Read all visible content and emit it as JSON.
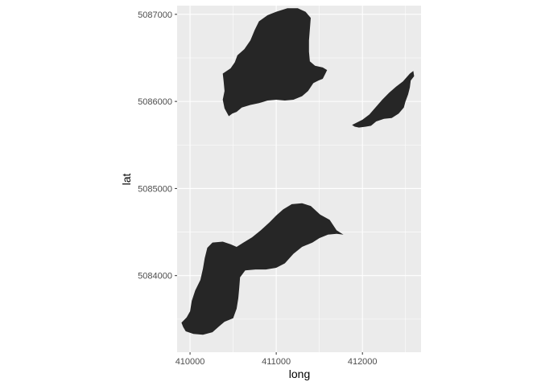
{
  "chart_data": {
    "type": "map-polygons",
    "xlabel": "long",
    "ylabel": "lat",
    "xlim": [
      409850,
      412680
    ],
    "ylim": [
      5083120,
      5087100
    ],
    "x_ticks": [
      {
        "value": 410000,
        "label": "410000"
      },
      {
        "value": 411000,
        "label": "411000"
      },
      {
        "value": 412000,
        "label": "412000"
      }
    ],
    "y_ticks": [
      {
        "value": 5084000,
        "label": "5084000"
      },
      {
        "value": 5085000,
        "label": "5085000"
      },
      {
        "value": 5086000,
        "label": "5086000"
      },
      {
        "value": 5087000,
        "label": "5087000"
      }
    ],
    "grid": true,
    "colors": {
      "panel": "#ebebeb",
      "grid_major": "#ffffff",
      "polygon_fill": "#262626"
    },
    "polygons": [
      {
        "name": "north-lake",
        "points": [
          [
            410450,
            5085830
          ],
          [
            410400,
            5085920
          ],
          [
            410380,
            5086020
          ],
          [
            410400,
            5086120
          ],
          [
            410390,
            5086230
          ],
          [
            410380,
            5086320
          ],
          [
            410470,
            5086380
          ],
          [
            410520,
            5086450
          ],
          [
            410550,
            5086530
          ],
          [
            410630,
            5086600
          ],
          [
            410700,
            5086700
          ],
          [
            410750,
            5086820
          ],
          [
            410800,
            5086920
          ],
          [
            410900,
            5086990
          ],
          [
            411000,
            5087030
          ],
          [
            411130,
            5087070
          ],
          [
            411250,
            5087070
          ],
          [
            411340,
            5087030
          ],
          [
            411400,
            5086960
          ],
          [
            411390,
            5086830
          ],
          [
            411380,
            5086700
          ],
          [
            411380,
            5086570
          ],
          [
            411390,
            5086460
          ],
          [
            411450,
            5086410
          ],
          [
            411540,
            5086390
          ],
          [
            411590,
            5086360
          ],
          [
            411570,
            5086320
          ],
          [
            411540,
            5086260
          ],
          [
            411490,
            5086240
          ],
          [
            411430,
            5086210
          ],
          [
            411370,
            5086120
          ],
          [
            411300,
            5086060
          ],
          [
            411200,
            5086020
          ],
          [
            411100,
            5086010
          ],
          [
            411000,
            5086020
          ],
          [
            410900,
            5086010
          ],
          [
            410800,
            5085980
          ],
          [
            410700,
            5085960
          ],
          [
            410600,
            5085930
          ],
          [
            410540,
            5085880
          ],
          [
            410490,
            5085860
          ]
        ]
      },
      {
        "name": "east-lake",
        "points": [
          [
            411880,
            5085730
          ],
          [
            412000,
            5085790
          ],
          [
            412080,
            5085850
          ],
          [
            412150,
            5085930
          ],
          [
            412230,
            5086020
          ],
          [
            412310,
            5086100
          ],
          [
            412390,
            5086170
          ],
          [
            412470,
            5086230
          ],
          [
            412550,
            5086320
          ],
          [
            412590,
            5086350
          ],
          [
            412600,
            5086290
          ],
          [
            412560,
            5086240
          ],
          [
            412550,
            5086160
          ],
          [
            412530,
            5086080
          ],
          [
            412500,
            5086000
          ],
          [
            412480,
            5085930
          ],
          [
            412420,
            5085860
          ],
          [
            412340,
            5085810
          ],
          [
            412250,
            5085800
          ],
          [
            412160,
            5085770
          ],
          [
            412100,
            5085720
          ],
          [
            412040,
            5085710
          ],
          [
            411960,
            5085700
          ],
          [
            411910,
            5085710
          ]
        ]
      },
      {
        "name": "south-lake",
        "points": [
          [
            409920,
            5083410
          ],
          [
            409900,
            5083460
          ],
          [
            409960,
            5083520
          ],
          [
            410000,
            5083590
          ],
          [
            410020,
            5083710
          ],
          [
            410060,
            5083830
          ],
          [
            410120,
            5083950
          ],
          [
            410150,
            5084080
          ],
          [
            410170,
            5084200
          ],
          [
            410200,
            5084320
          ],
          [
            410260,
            5084380
          ],
          [
            410380,
            5084390
          ],
          [
            410470,
            5084360
          ],
          [
            410540,
            5084330
          ],
          [
            410620,
            5084380
          ],
          [
            410720,
            5084440
          ],
          [
            410820,
            5084520
          ],
          [
            410920,
            5084610
          ],
          [
            411000,
            5084690
          ],
          [
            411080,
            5084760
          ],
          [
            411180,
            5084820
          ],
          [
            411300,
            5084830
          ],
          [
            411400,
            5084800
          ],
          [
            411510,
            5084700
          ],
          [
            411620,
            5084640
          ],
          [
            411700,
            5084520
          ],
          [
            411780,
            5084470
          ],
          [
            411700,
            5084480
          ],
          [
            411600,
            5084470
          ],
          [
            411500,
            5084430
          ],
          [
            411420,
            5084380
          ],
          [
            411300,
            5084330
          ],
          [
            411200,
            5084250
          ],
          [
            411100,
            5084140
          ],
          [
            411000,
            5084090
          ],
          [
            410880,
            5084070
          ],
          [
            410760,
            5084070
          ],
          [
            410640,
            5084060
          ],
          [
            410580,
            5083980
          ],
          [
            410570,
            5083850
          ],
          [
            410560,
            5083740
          ],
          [
            410540,
            5083620
          ],
          [
            410500,
            5083510
          ],
          [
            410400,
            5083470
          ],
          [
            410340,
            5083420
          ],
          [
            410260,
            5083350
          ],
          [
            410150,
            5083320
          ],
          [
            410040,
            5083330
          ],
          [
            409950,
            5083360
          ]
        ]
      }
    ]
  }
}
